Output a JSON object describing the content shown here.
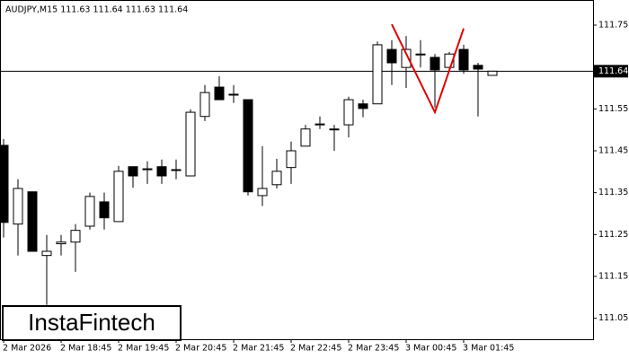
{
  "chart_data": {
    "type": "candlestick",
    "title": "AUDJPY,M15  111.63 111.64 111.63 111.64",
    "watermark": "InstaFintech",
    "categories": [
      "2 Mar 2026",
      null,
      null,
      null,
      "2 Mar 18:45",
      null,
      null,
      null,
      "2 Mar 19:45",
      null,
      null,
      null,
      "2 Mar 20:45",
      null,
      null,
      null,
      "2 Mar 21:45",
      null,
      null,
      null,
      "2 Mar 22:45",
      null,
      null,
      null,
      "2 Mar 23:45",
      null,
      null,
      null,
      "3 Mar 00:45",
      null,
      null,
      null,
      "3 Mar 01:45",
      null,
      null
    ],
    "open": [
      111.463,
      111.275,
      111.352,
      111.2,
      111.228,
      111.232,
      111.27,
      111.328,
      111.281,
      111.412,
      111.405,
      111.412,
      111.405,
      111.39,
      111.532,
      111.602,
      111.583,
      111.572,
      111.343,
      111.369,
      111.41,
      111.461,
      111.512,
      111.5,
      111.512,
      111.562,
      111.562,
      111.692,
      111.649,
      111.681,
      111.673,
      111.649,
      111.692,
      111.654,
      111.63
    ],
    "high": [
      111.478,
      111.382,
      111.352,
      111.249,
      111.249,
      111.275,
      111.35,
      111.35,
      111.414,
      111.412,
      111.425,
      111.429,
      111.429,
      111.549,
      111.607,
      111.628,
      111.607,
      111.572,
      111.461,
      111.431,
      111.472,
      111.512,
      111.532,
      111.512,
      111.579,
      111.572,
      111.711,
      111.714,
      111.724,
      111.714,
      111.681,
      111.686,
      111.703,
      111.66,
      111.64
    ],
    "low": [
      111.243,
      111.2,
      111.21,
      111.082,
      111.2,
      111.161,
      111.262,
      111.262,
      111.281,
      111.362,
      111.371,
      111.371,
      111.382,
      111.39,
      111.521,
      111.572,
      111.564,
      111.343,
      111.318,
      111.36,
      111.371,
      111.461,
      111.502,
      111.45,
      111.482,
      111.53,
      111.562,
      111.607,
      111.6,
      111.649,
      111.553,
      111.639,
      111.634,
      111.532,
      111.63
    ],
    "close": [
      111.279,
      111.36,
      111.21,
      111.21,
      111.232,
      111.26,
      111.341,
      111.29,
      111.401,
      111.39,
      111.407,
      111.39,
      111.405,
      111.542,
      111.589,
      111.572,
      111.585,
      111.352,
      111.36,
      111.401,
      111.45,
      111.502,
      111.514,
      111.502,
      111.572,
      111.551,
      111.703,
      111.66,
      111.692,
      111.681,
      111.643,
      111.681,
      111.643,
      111.645,
      111.64
    ],
    "bull_color": "#ffffff",
    "bear_color": "#000000",
    "current_price": 111.64,
    "pattern": {
      "color": "#e00000",
      "x": [
        27,
        30,
        32
      ],
      "values": [
        111.752,
        111.542,
        111.742
      ]
    },
    "ylim": [
      111.0,
      111.81
    ],
    "yticks": [
      111.05,
      111.15,
      111.25,
      111.35,
      111.45,
      111.55,
      111.75
    ]
  }
}
